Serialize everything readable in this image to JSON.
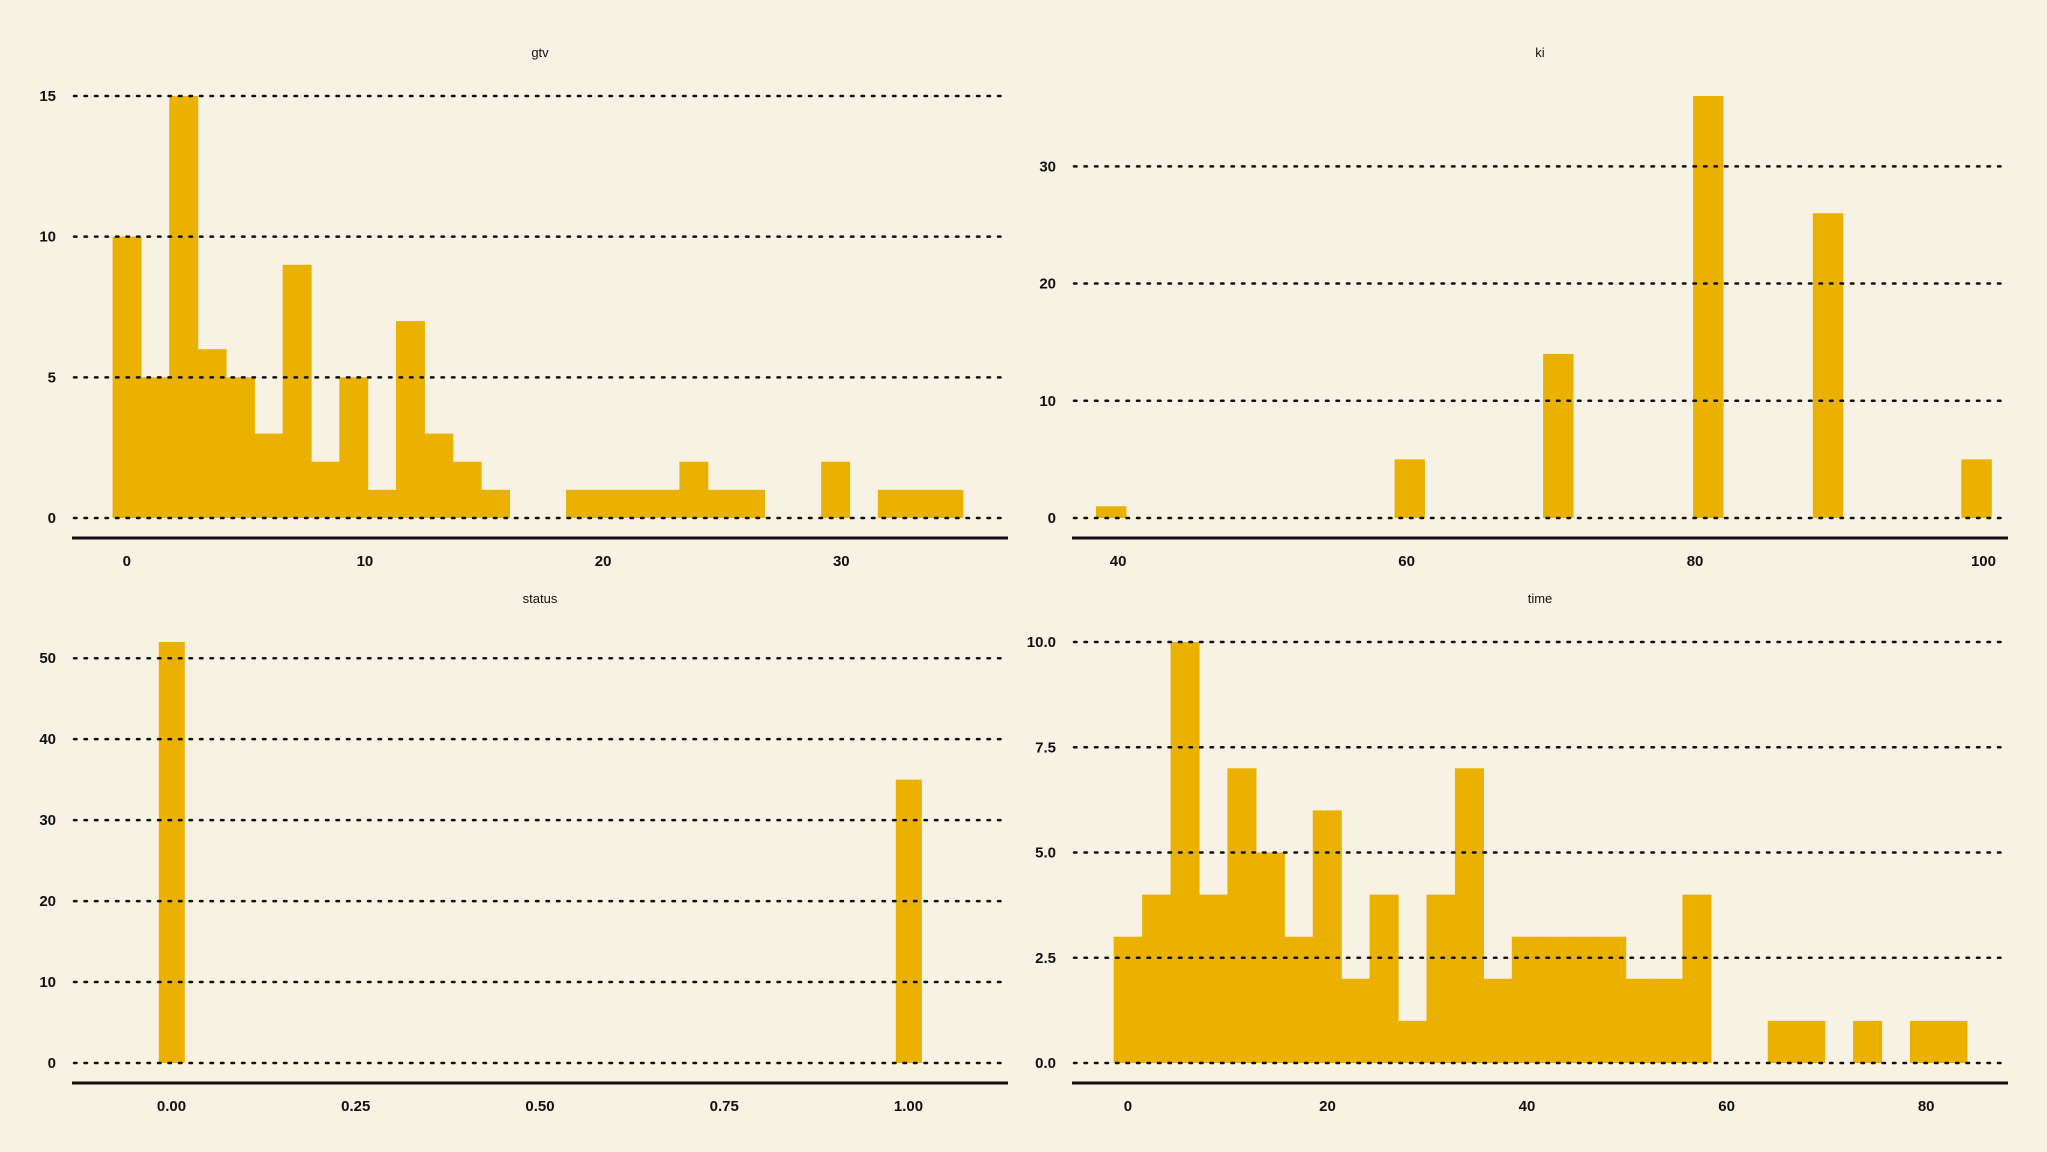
{
  "colors": {
    "background": "#f7f2e4",
    "bar": "#ebb100",
    "text": "#111111"
  },
  "chart_data": [
    {
      "type": "bar",
      "title": "gtv",
      "xlabel": "",
      "ylabel": "",
      "xlim": [
        -2.3,
        37.0
      ],
      "ylim": [
        0,
        15
      ],
      "xticks": [
        0,
        10,
        20,
        30
      ],
      "yticks": [
        0,
        5,
        10,
        15
      ],
      "grid": "horizontal-dotted",
      "bin_width": 1.19,
      "bins": [
        {
          "x": 0.0,
          "count": 10
        },
        {
          "x": 1.19,
          "count": 5
        },
        {
          "x": 2.38,
          "count": 15
        },
        {
          "x": 3.57,
          "count": 6
        },
        {
          "x": 4.76,
          "count": 5
        },
        {
          "x": 5.95,
          "count": 3
        },
        {
          "x": 7.14,
          "count": 9
        },
        {
          "x": 8.33,
          "count": 2
        },
        {
          "x": 9.52,
          "count": 5
        },
        {
          "x": 10.71,
          "count": 1
        },
        {
          "x": 11.9,
          "count": 7
        },
        {
          "x": 13.09,
          "count": 3
        },
        {
          "x": 14.28,
          "count": 2
        },
        {
          "x": 15.47,
          "count": 1
        },
        {
          "x": 19.04,
          "count": 1
        },
        {
          "x": 20.23,
          "count": 1
        },
        {
          "x": 21.42,
          "count": 1
        },
        {
          "x": 22.61,
          "count": 1
        },
        {
          "x": 23.8,
          "count": 2
        },
        {
          "x": 24.99,
          "count": 1
        },
        {
          "x": 26.18,
          "count": 1
        },
        {
          "x": 29.75,
          "count": 2
        },
        {
          "x": 32.13,
          "count": 1
        },
        {
          "x": 33.32,
          "count": 1
        },
        {
          "x": 34.51,
          "count": 1
        }
      ]
    },
    {
      "type": "bar",
      "title": "ki",
      "xlabel": "",
      "ylabel": "",
      "xlim": [
        36.8,
        101.7
      ],
      "ylim": [
        0,
        36
      ],
      "xticks": [
        40,
        60,
        80,
        100
      ],
      "yticks": [
        0,
        10,
        20,
        30
      ],
      "grid": "horizontal-dotted",
      "bin_width": 2.07,
      "bins": [
        {
          "x": 39.5,
          "count": 1
        },
        {
          "x": 60.2,
          "count": 5
        },
        {
          "x": 70.5,
          "count": 14
        },
        {
          "x": 80.9,
          "count": 36
        },
        {
          "x": 89.2,
          "count": 26
        },
        {
          "x": 99.5,
          "count": 5
        }
      ]
    },
    {
      "type": "bar",
      "title": "status",
      "xlabel": "",
      "ylabel": "",
      "xlim": [
        -0.135,
        1.135
      ],
      "ylim": [
        0,
        52
      ],
      "xticks": [
        "0.00",
        "0.25",
        "0.50",
        "0.75",
        "1.00"
      ],
      "yticks": [
        0,
        10,
        20,
        30,
        40,
        50
      ],
      "grid": "horizontal-dotted",
      "bin_width": 0.0345,
      "bins": [
        {
          "x": 0.0,
          "count": 52
        },
        {
          "x": 1.0,
          "count": 35
        }
      ]
    },
    {
      "type": "bar",
      "title": "time",
      "xlabel": "",
      "ylabel": "",
      "xlim": [
        -5.6,
        88.2
      ],
      "ylim": [
        0,
        10
      ],
      "xticks": [
        0,
        20,
        40,
        60,
        80
      ],
      "yticks": [
        "0.0",
        "2.5",
        "5.0",
        "7.5",
        "10.0"
      ],
      "grid": "horizontal-dotted",
      "bin_width": 2.85,
      "bins": [
        {
          "x": 0.0,
          "count": 3
        },
        {
          "x": 2.85,
          "count": 4
        },
        {
          "x": 5.7,
          "count": 10
        },
        {
          "x": 8.55,
          "count": 4
        },
        {
          "x": 11.4,
          "count": 7
        },
        {
          "x": 14.25,
          "count": 5
        },
        {
          "x": 17.1,
          "count": 3
        },
        {
          "x": 19.95,
          "count": 6
        },
        {
          "x": 22.8,
          "count": 2
        },
        {
          "x": 25.65,
          "count": 4
        },
        {
          "x": 28.5,
          "count": 1
        },
        {
          "x": 31.35,
          "count": 4
        },
        {
          "x": 34.2,
          "count": 7
        },
        {
          "x": 37.05,
          "count": 2
        },
        {
          "x": 39.9,
          "count": 3
        },
        {
          "x": 42.75,
          "count": 3
        },
        {
          "x": 45.6,
          "count": 3
        },
        {
          "x": 48.45,
          "count": 3
        },
        {
          "x": 51.3,
          "count": 2
        },
        {
          "x": 54.15,
          "count": 2
        },
        {
          "x": 57.0,
          "count": 4
        },
        {
          "x": 65.55,
          "count": 1
        },
        {
          "x": 68.4,
          "count": 1
        },
        {
          "x": 74.1,
          "count": 1
        },
        {
          "x": 79.8,
          "count": 1
        },
        {
          "x": 82.65,
          "count": 1
        }
      ]
    }
  ]
}
